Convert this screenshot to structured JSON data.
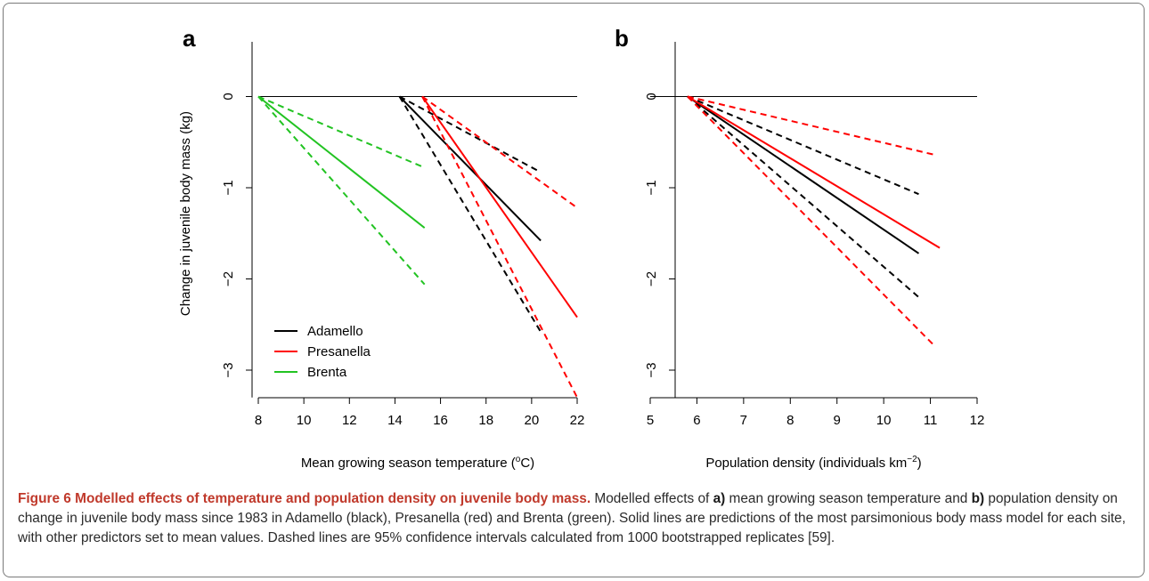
{
  "chart_data": [
    {
      "type": "line",
      "panel_label": "a",
      "xlabel_main": "Mean growing season temperature (",
      "xlabel_sup": "o",
      "xlabel_end": "C)",
      "ylabel": "Change in juvenile body mass (kg)",
      "xlim": [
        7.8,
        22
      ],
      "ylim": [
        -3.3,
        0.6
      ],
      "xticks": [
        8,
        10,
        12,
        14,
        16,
        18,
        20,
        22
      ],
      "yticks": [
        0,
        -1,
        -2,
        -3
      ],
      "reference_line": 0,
      "legend_position": "bottom-left",
      "series": [
        {
          "name": "Adamello",
          "color": "#000000",
          "style": "solid",
          "x": [
            14.2,
            20.4
          ],
          "y": [
            0,
            -1.58
          ]
        },
        {
          "name": "",
          "color": "#000000",
          "style": "dashed",
          "x": [
            14.2,
            20.4
          ],
          "y": [
            0,
            -0.83
          ]
        },
        {
          "name": "",
          "color": "#000000",
          "style": "dashed",
          "x": [
            14.2,
            20.4
          ],
          "y": [
            0,
            -2.58
          ]
        },
        {
          "name": "Presanella",
          "color": "#ff0000",
          "style": "solid",
          "x": [
            15.2,
            22
          ],
          "y": [
            0,
            -2.42
          ]
        },
        {
          "name": "",
          "color": "#ff0000",
          "style": "dashed",
          "x": [
            15.2,
            22
          ],
          "y": [
            0,
            -1.22
          ]
        },
        {
          "name": "",
          "color": "#ff0000",
          "style": "dashed",
          "x": [
            15.2,
            22
          ],
          "y": [
            0,
            -3.3
          ]
        },
        {
          "name": "Brenta",
          "color": "#22c322",
          "style": "solid",
          "x": [
            8,
            15.3
          ],
          "y": [
            0,
            -1.44
          ]
        },
        {
          "name": "",
          "color": "#22c322",
          "style": "dashed",
          "x": [
            8,
            15.3
          ],
          "y": [
            0,
            -0.78
          ]
        },
        {
          "name": "",
          "color": "#22c322",
          "style": "dashed",
          "x": [
            8,
            15.3
          ],
          "y": [
            0,
            -2.06
          ]
        }
      ]
    },
    {
      "type": "line",
      "panel_label": "b",
      "xlabel_main": "Population density (individuals km",
      "xlabel_sup": "−2",
      "xlabel_end": ")",
      "ylabel": "",
      "xlim": [
        5,
        12
      ],
      "ylim": [
        -3.3,
        0.6
      ],
      "xticks": [
        5,
        6,
        7,
        8,
        9,
        10,
        11,
        12
      ],
      "yticks": [
        0,
        -1,
        -2,
        -3
      ],
      "reference_line": 0,
      "series": [
        {
          "name": "Adamello",
          "color": "#000000",
          "style": "solid",
          "x": [
            5.8,
            10.75
          ],
          "y": [
            0,
            -1.72
          ]
        },
        {
          "name": "",
          "color": "#000000",
          "style": "dashed",
          "x": [
            5.8,
            10.75
          ],
          "y": [
            0,
            -1.07
          ]
        },
        {
          "name": "",
          "color": "#000000",
          "style": "dashed",
          "x": [
            5.8,
            10.75
          ],
          "y": [
            0,
            -2.2
          ]
        },
        {
          "name": "Presanella",
          "color": "#ff0000",
          "style": "solid",
          "x": [
            5.8,
            11.2
          ],
          "y": [
            0,
            -1.66
          ]
        },
        {
          "name": "",
          "color": "#ff0000",
          "style": "dashed",
          "x": [
            5.8,
            11.1
          ],
          "y": [
            0,
            -0.64
          ]
        },
        {
          "name": "",
          "color": "#ff0000",
          "style": "dashed",
          "x": [
            5.8,
            11.1
          ],
          "y": [
            0,
            -2.74
          ]
        }
      ]
    }
  ],
  "caption": {
    "title": "Figure 6 Modelled effects of temperature and population density on juvenile body mass.",
    "part1": " Modelled effects of ",
    "label_a": "a)",
    "part2": " mean growing season temperature and ",
    "label_b": "b)",
    "part3": " population density on change in juvenile body mass since 1983 in Adamello (black), Presanella (red) and Brenta (green). Solid lines are predictions of the most parsimonious body mass model for each site, with other predictors set to mean values. Dashed lines are 95% confidence intervals calculated from 1000 bootstrapped replicates [59]."
  }
}
